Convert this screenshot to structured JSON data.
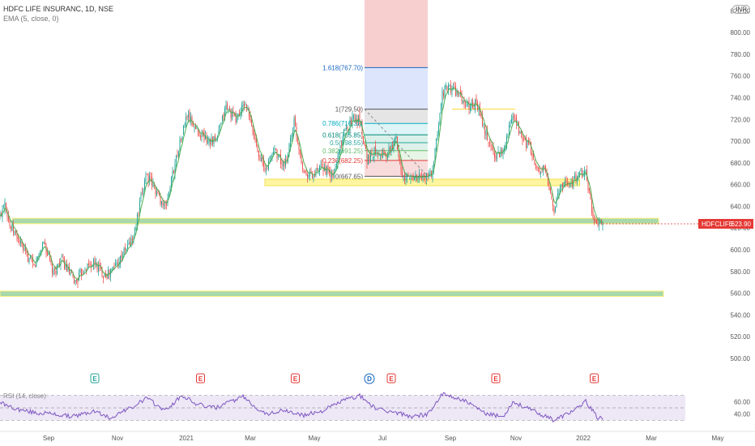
{
  "header": {
    "title": "HDFC LIFE INSURANC, 1D, NSE",
    "ema_label": "EMA (5, close, 0)",
    "currency": "INR"
  },
  "price_tag": {
    "symbol": "HDFCLIFE",
    "value": "623.90",
    "color": "#e53935"
  },
  "colors": {
    "up": "#26a69a",
    "down": "#ef5350",
    "ema": "#4caf50",
    "zone_yellow": "#fff59d",
    "zone_green": "#a5d6a7",
    "rsi": "#7e57c2"
  },
  "chart_data": {
    "type": "candlestick",
    "title": "HDFC LIFE INSURANC, 1D, NSE",
    "y_axis": {
      "ticks": [
        "820.00",
        "800.00",
        "780.00",
        "760.00",
        "740.00",
        "720.00",
        "700.00",
        "680.00",
        "660.00",
        "640.00",
        "620.00",
        "600.00",
        "580.00",
        "560.00",
        "540.00",
        "520.00",
        "500.00"
      ],
      "range": [
        488,
        830
      ]
    },
    "x_axis": {
      "ticks": [
        "Sep",
        "Nov",
        "2021",
        "Mar",
        "May",
        "Jul",
        "Sep",
        "Nov",
        "2022",
        "Mar",
        "May"
      ]
    },
    "anchors": [
      {
        "t": 0,
        "p": 630
      },
      {
        "t": 4,
        "p": 646
      },
      {
        "t": 8,
        "p": 622
      },
      {
        "t": 14,
        "p": 612
      },
      {
        "t": 20,
        "p": 598
      },
      {
        "t": 28,
        "p": 584
      },
      {
        "t": 36,
        "p": 608
      },
      {
        "t": 44,
        "p": 577
      },
      {
        "t": 50,
        "p": 592
      },
      {
        "t": 56,
        "p": 580
      },
      {
        "t": 62,
        "p": 570
      },
      {
        "t": 70,
        "p": 584
      },
      {
        "t": 78,
        "p": 588
      },
      {
        "t": 85,
        "p": 578
      },
      {
        "t": 90,
        "p": 578
      },
      {
        "t": 100,
        "p": 594
      },
      {
        "t": 110,
        "p": 612
      },
      {
        "t": 120,
        "p": 670
      },
      {
        "t": 128,
        "p": 655
      },
      {
        "t": 136,
        "p": 638
      },
      {
        "t": 146,
        "p": 690
      },
      {
        "t": 154,
        "p": 724
      },
      {
        "t": 162,
        "p": 710
      },
      {
        "t": 170,
        "p": 702
      },
      {
        "t": 178,
        "p": 700
      },
      {
        "t": 186,
        "p": 732
      },
      {
        "t": 194,
        "p": 720
      },
      {
        "t": 202,
        "p": 735
      },
      {
        "t": 210,
        "p": 700
      },
      {
        "t": 218,
        "p": 672
      },
      {
        "t": 226,
        "p": 694
      },
      {
        "t": 234,
        "p": 674
      },
      {
        "t": 242,
        "p": 718
      },
      {
        "t": 250,
        "p": 672
      },
      {
        "t": 258,
        "p": 668
      },
      {
        "t": 266,
        "p": 676
      },
      {
        "t": 274,
        "p": 666
      },
      {
        "t": 282,
        "p": 704
      },
      {
        "t": 290,
        "p": 722
      },
      {
        "t": 296,
        "p": 720
      },
      {
        "t": 302,
        "p": 684
      },
      {
        "t": 310,
        "p": 692
      },
      {
        "t": 318,
        "p": 686
      },
      {
        "t": 326,
        "p": 702
      },
      {
        "t": 332,
        "p": 664
      },
      {
        "t": 340,
        "p": 668
      },
      {
        "t": 348,
        "p": 666
      },
      {
        "t": 356,
        "p": 670
      },
      {
        "t": 364,
        "p": 745
      },
      {
        "t": 370,
        "p": 750
      },
      {
        "t": 376,
        "p": 745
      },
      {
        "t": 384,
        "p": 732
      },
      {
        "t": 392,
        "p": 735
      },
      {
        "t": 400,
        "p": 705
      },
      {
        "t": 408,
        "p": 686
      },
      {
        "t": 414,
        "p": 692
      },
      {
        "t": 422,
        "p": 722
      },
      {
        "t": 430,
        "p": 702
      },
      {
        "t": 436,
        "p": 694
      },
      {
        "t": 442,
        "p": 672
      },
      {
        "t": 448,
        "p": 674
      },
      {
        "t": 456,
        "p": 638
      },
      {
        "t": 462,
        "p": 660
      },
      {
        "t": 470,
        "p": 662
      },
      {
        "t": 476,
        "p": 668
      },
      {
        "t": 482,
        "p": 672
      },
      {
        "t": 488,
        "p": 630
      },
      {
        "t": 492,
        "p": 626
      },
      {
        "t": 496,
        "p": 624
      }
    ],
    "last_close": 623.9,
    "zones": [
      {
        "name": "support-zone-yellow",
        "color": "yellow",
        "from_t": 218,
        "to_t": 477,
        "low": 659,
        "high": 665
      },
      {
        "name": "support-zone-teal-mid",
        "color": "green",
        "from_t": 10,
        "to_t": 542,
        "low": 624,
        "high": 629
      },
      {
        "name": "support-zone-teal-low",
        "color": "green",
        "from_t": 0,
        "to_t": 546,
        "low": 557,
        "high": 562
      }
    ],
    "fibonacci": {
      "from_t": 300,
      "to_t": 352,
      "top_band": {
        "low": 767.7,
        "high": 830
      },
      "levels": [
        {
          "ratio_label": "1.618(767.70)",
          "value": 767.7,
          "color": "#1565c0"
        },
        {
          "ratio_label": "1(729.50)",
          "value": 729.5,
          "color": "#555555"
        },
        {
          "ratio_label": "0.786(716.32)",
          "value": 716.32,
          "color": "#00acc1"
        },
        {
          "ratio_label": "0.618(705.85)",
          "value": 705.85,
          "color": "#00897b"
        },
        {
          "ratio_label": "0.5(698.55)",
          "value": 698.55,
          "color": "#26a69a"
        },
        {
          "ratio_label": "0.382(691.25)",
          "value": 691.25,
          "color": "#66bb6a"
        },
        {
          "ratio_label": "0.236(682.25)",
          "value": 682.25,
          "color": "#e53935"
        },
        {
          "ratio_label": "0(667.65)",
          "value": 667.65,
          "color": "#555555"
        }
      ]
    },
    "yellow_line": {
      "t_from": 372,
      "t_to": 424,
      "value": 729.5
    },
    "events": [
      {
        "t": 78,
        "letter": "E"
      },
      {
        "t": 165,
        "letter": "E"
      },
      {
        "t": 243,
        "letter": "E"
      },
      {
        "t": 304,
        "letter": "D"
      },
      {
        "t": 322,
        "letter": "E"
      },
      {
        "t": 408,
        "letter": "E"
      },
      {
        "t": 489,
        "letter": "E"
      }
    ],
    "rsi": {
      "label": "RSI (14, close)",
      "ticks": [
        "60.00",
        "40.00"
      ],
      "upper": 70,
      "lower": 30,
      "anchors": [
        {
          "t": 0,
          "v": 58
        },
        {
          "t": 14,
          "v": 48
        },
        {
          "t": 30,
          "v": 42
        },
        {
          "t": 44,
          "v": 40
        },
        {
          "t": 60,
          "v": 36
        },
        {
          "t": 78,
          "v": 45
        },
        {
          "t": 90,
          "v": 34
        },
        {
          "t": 110,
          "v": 52
        },
        {
          "t": 120,
          "v": 66
        },
        {
          "t": 136,
          "v": 46
        },
        {
          "t": 150,
          "v": 70
        },
        {
          "t": 162,
          "v": 56
        },
        {
          "t": 178,
          "v": 50
        },
        {
          "t": 200,
          "v": 68
        },
        {
          "t": 218,
          "v": 40
        },
        {
          "t": 234,
          "v": 46
        },
        {
          "t": 250,
          "v": 38
        },
        {
          "t": 266,
          "v": 46
        },
        {
          "t": 282,
          "v": 62
        },
        {
          "t": 296,
          "v": 70
        },
        {
          "t": 310,
          "v": 48
        },
        {
          "t": 326,
          "v": 42
        },
        {
          "t": 340,
          "v": 36
        },
        {
          "t": 352,
          "v": 40
        },
        {
          "t": 364,
          "v": 72
        },
        {
          "t": 380,
          "v": 64
        },
        {
          "t": 400,
          "v": 40
        },
        {
          "t": 414,
          "v": 36
        },
        {
          "t": 422,
          "v": 60
        },
        {
          "t": 440,
          "v": 44
        },
        {
          "t": 456,
          "v": 30
        },
        {
          "t": 476,
          "v": 50
        },
        {
          "t": 482,
          "v": 60
        },
        {
          "t": 492,
          "v": 34
        },
        {
          "t": 496,
          "v": 33
        }
      ]
    }
  }
}
